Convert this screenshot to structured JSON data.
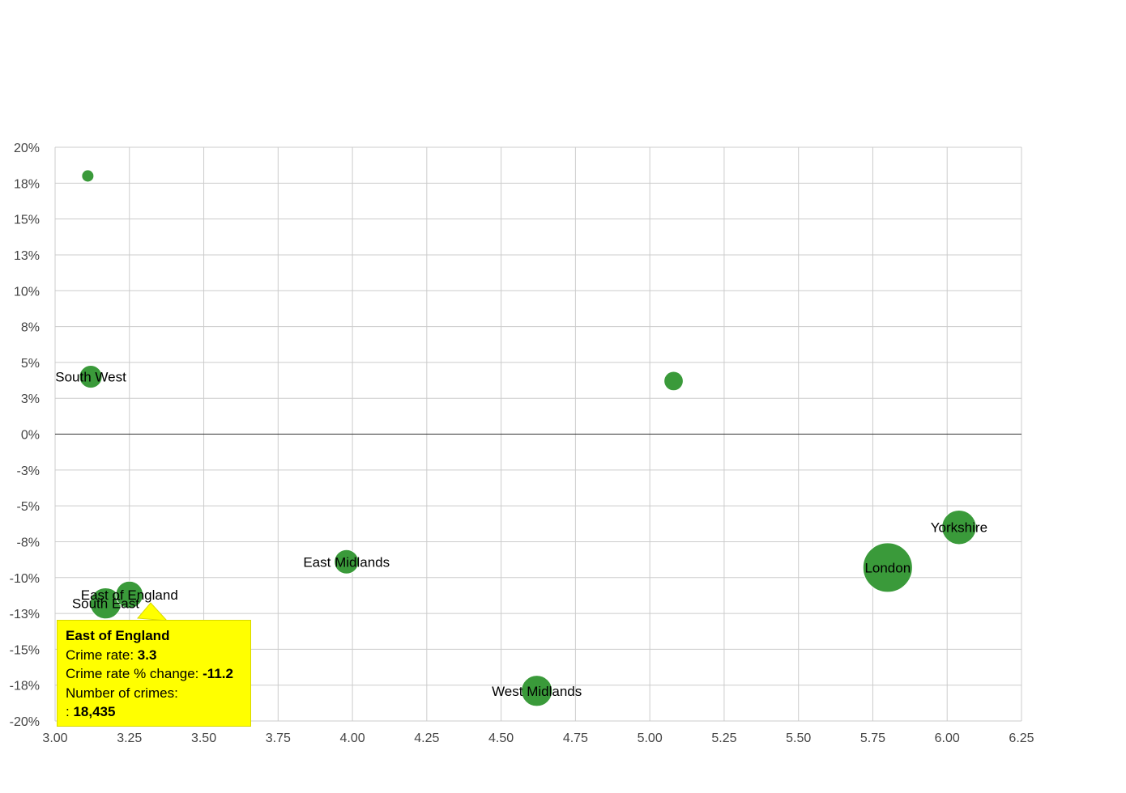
{
  "chart_data": {
    "type": "scatter",
    "title": "",
    "xlabel": "",
    "ylabel": "",
    "xlim": [
      3.0,
      6.25
    ],
    "ylim": [
      -20,
      20
    ],
    "x_ticks": [
      "3.00",
      "3.25",
      "3.50",
      "3.75",
      "4.00",
      "4.25",
      "4.50",
      "4.75",
      "5.00",
      "5.25",
      "5.50",
      "5.75",
      "6.00",
      "6.25"
    ],
    "y_ticks": [
      "20%",
      "18%",
      "15%",
      "13%",
      "10%",
      "8%",
      "5%",
      "3%",
      "0%",
      "-3%",
      "-5%",
      "-8%",
      "-10%",
      "-13%",
      "-15%",
      "-18%",
      "-20%"
    ],
    "grid": true,
    "bubble_color": "#3a9a3a",
    "points": [
      {
        "label": "",
        "x": 3.11,
        "y": 18.0,
        "size": 0.2
      },
      {
        "label": "South West",
        "x": 3.12,
        "y": 4.0,
        "size": 0.7
      },
      {
        "label": "",
        "x": 5.08,
        "y": 3.7,
        "size": 0.5
      },
      {
        "label": "East Midlands",
        "x": 3.98,
        "y": -8.9,
        "size": 0.8
      },
      {
        "label": "South East",
        "x": 3.17,
        "y": -11.8,
        "size": 1.3
      },
      {
        "label": "East of England",
        "x": 3.25,
        "y": -11.2,
        "size": 1.0
      },
      {
        "label": "West Midlands",
        "x": 4.62,
        "y": -17.9,
        "size": 1.3
      },
      {
        "label": "London",
        "x": 5.8,
        "y": -9.3,
        "size": 3.3
      },
      {
        "label": "Yorkshire",
        "x": 6.04,
        "y": -6.5,
        "size": 1.6
      }
    ]
  },
  "tooltip": {
    "title": "East of England",
    "rate_label": "Crime rate: ",
    "rate_value": "3.3",
    "change_label": "Crime rate % change: ",
    "change_value": "-11.2",
    "count_label": "Number of crimes:",
    "count_prefix": ": ",
    "count_value": "18,435"
  }
}
